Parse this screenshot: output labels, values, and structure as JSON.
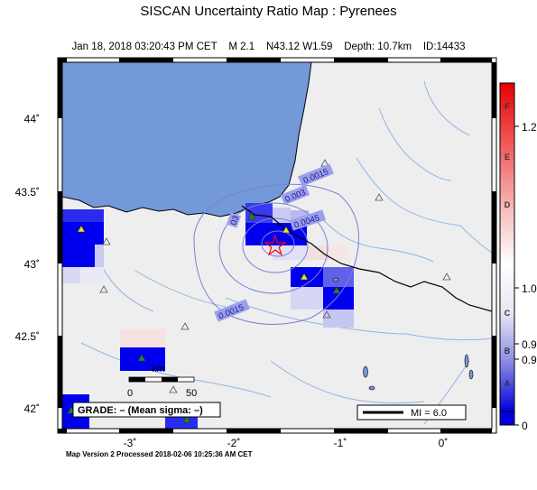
{
  "map": {
    "title": "SISCAN Uncertainty Ratio Map : Pyrenees",
    "event": {
      "date": "Jan 18, 2018 03:20:43 PM CET",
      "magnitude": "M 2.1",
      "location": "N43.12 W1.59",
      "depth": "Depth: 10.7km",
      "id": "ID:14433"
    },
    "footer": "Map Version 2 Processed 2018-02-06 10:25:36 AM CET",
    "lat_labels": [
      "44˚",
      "43.5˚",
      "43˚",
      "42.5˚",
      "42˚"
    ],
    "lon_labels": [
      "-3˚",
      "-2˚",
      "-1˚",
      "0˚"
    ],
    "grade_box": "GRADE: – (Mean sigma: –)",
    "scale_bar": {
      "unit": "km",
      "start": "0",
      "end": "50"
    },
    "mi_legend": "MI = 6.0",
    "contour_labels": [
      "0.0015",
      "0.003",
      "0.0045",
      "0.0015",
      "03"
    ],
    "colors": {
      "ocean": "#7399d9",
      "land": "#eeeeee",
      "border": "#000000",
      "river": "#8fb4e6",
      "contour": "#7b7fd9",
      "cell_blue": "#0000ee",
      "epicenter": "#ff0000",
      "station": "#1a8c1a"
    }
  },
  "colorbar": {
    "grades": [
      "F",
      "E",
      "D",
      "C",
      "B",
      "A"
    ],
    "values": [
      "1.2",
      "1.0",
      "0.9",
      "0.9",
      "0"
    ]
  }
}
